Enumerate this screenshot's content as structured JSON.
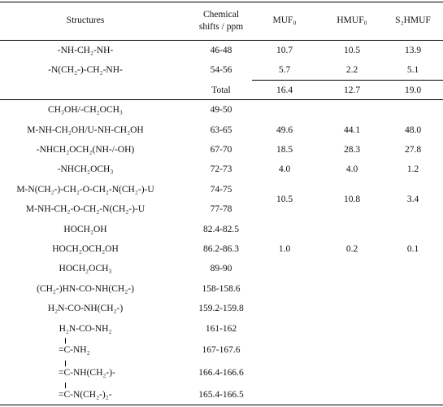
{
  "table": {
    "header": [
      "Structures",
      "Chemical",
      "shifts / ppm",
      "MUF₀",
      "HMUF₀",
      "S₂HMUF"
    ],
    "rows": [
      {
        "structure": "-NH-CH₂-NH-",
        "shift": "46-48",
        "values": [
          "10.7",
          "10.5",
          "13.9"
        ]
      },
      {
        "structure": "-N(CH₂-)-CH₂-NH-",
        "shift": "54-56",
        "values": [
          "5.7",
          "2.2",
          "5.1"
        ]
      },
      {
        "shift": "Total",
        "values": [
          "16.4",
          "12.7",
          "19.0"
        ]
      },
      {
        "structure": "CH₃OH/-CH₂OCH₃",
        "shift": "49-50"
      },
      {
        "structure": "M-NH-CH₂OH/U-NH-CH₂OH",
        "shift": "63-65",
        "values": [
          "49.6",
          "44.1",
          "48.0"
        ]
      },
      {
        "structure": "-NHCH₂OCH₂(NH-/-OH)",
        "shift": "67-70",
        "values": [
          "18.5",
          "28.3",
          "27.8"
        ]
      },
      {
        "structure": "-NHCH₂OCH₃",
        "shift": "72-73",
        "values": [
          "4.0",
          "4.0",
          "1.2"
        ]
      },
      {
        "structure": "M-N(CH₂-)-CH₂-O-CH₂-N(CH₂-)-U",
        "shift": "74-75",
        "values": [
          "10.5",
          "10.8",
          "3.4"
        ]
      },
      {
        "structure": "M-NH-CH₂-O-CH₂-N(CH₂-)-U",
        "shift": "77-78"
      },
      {
        "structure": "HOCH₂OH",
        "shift": "82.4-82.5"
      },
      {
        "structure": "HOCH₂OCH₂OH",
        "shift": "86.2-86.3",
        "values": [
          "1.0",
          "0.2",
          "0.1"
        ]
      },
      {
        "structure": "HOCH₂OCH₃",
        "shift": "89-90"
      },
      {
        "structure": "(CH₂-)HN-CO-NH(CH₂-)",
        "shift": "158-158.6"
      },
      {
        "structure": "H₂N-CO-NH(CH₂-)",
        "shift": "159.2-159.8"
      },
      {
        "structure": "H₂N-CO-NH₂",
        "shift": "161-162"
      },
      {
        "structure": "=C-NH₂",
        "shift": "167-167.6"
      },
      {
        "structure": "=C-NH(CH₂-)-",
        "shift": "166.4-166.6"
      },
      {
        "structure": "=C-N(CH₂-)₂-",
        "shift": "165.4-166.5"
      }
    ]
  }
}
